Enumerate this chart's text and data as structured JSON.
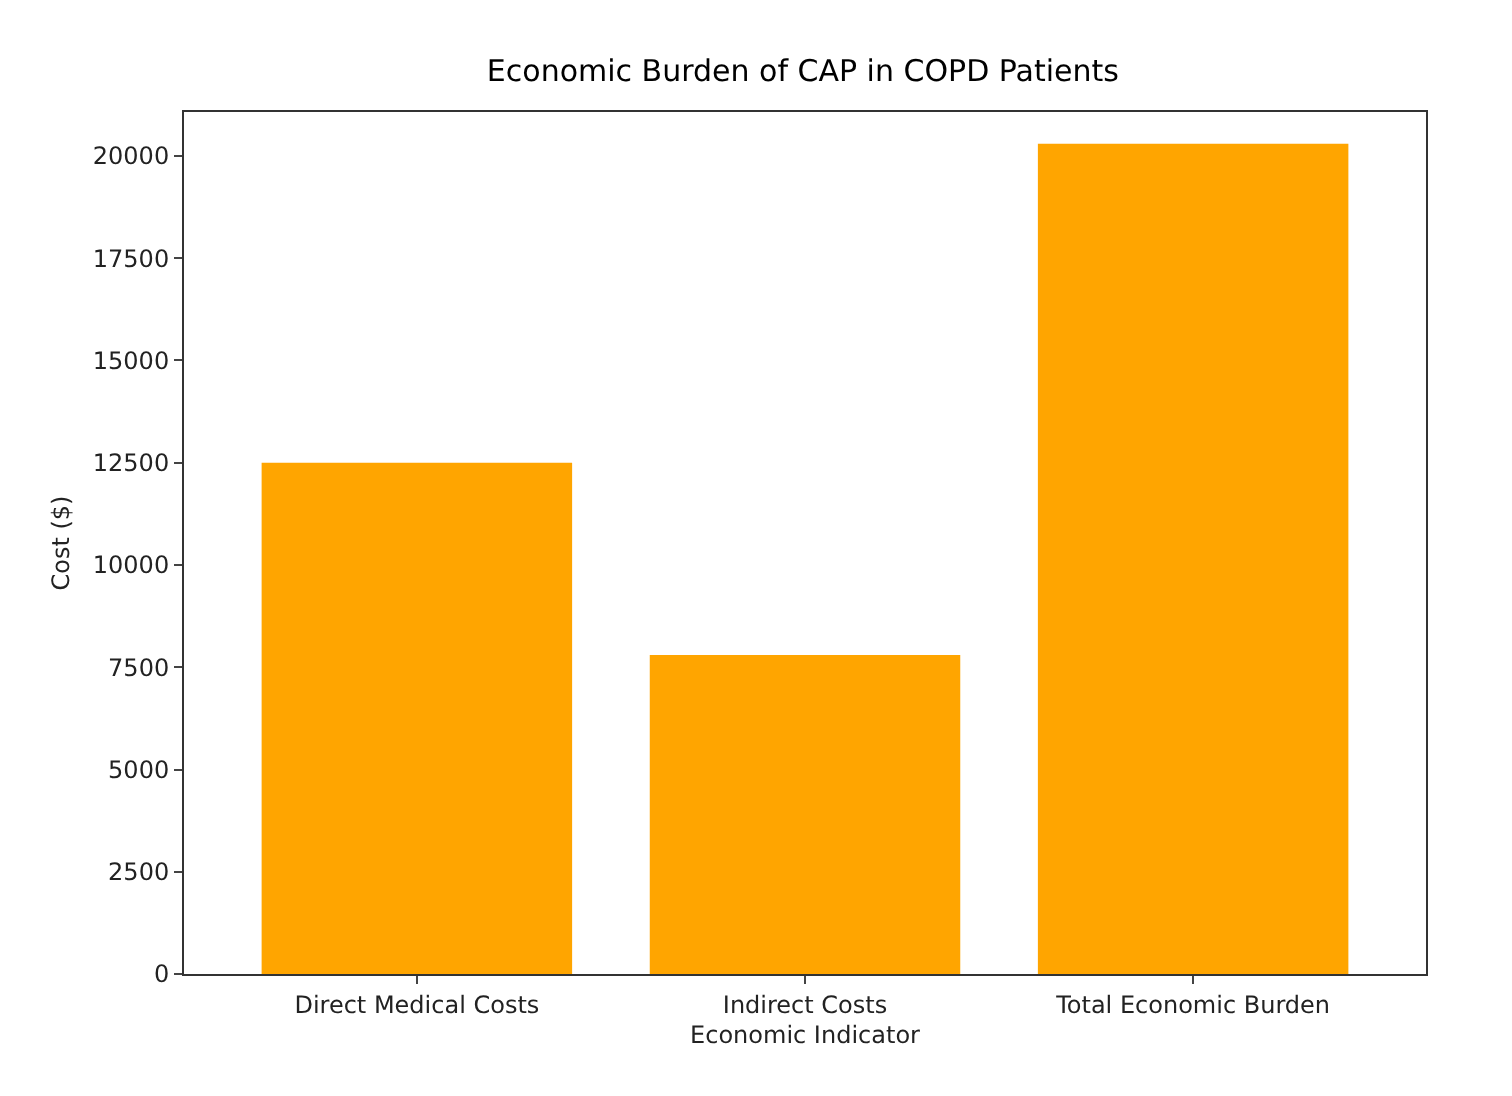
{
  "chart_data": {
    "type": "bar",
    "title": "Economic Burden of CAP in COPD Patients",
    "xlabel": "Economic Indicator",
    "ylabel": "Cost ($)",
    "categories": [
      "Direct Medical Costs",
      "Indirect Costs",
      "Total Economic Burden"
    ],
    "values": [
      12500,
      7800,
      20300
    ],
    "color": "#ffa500",
    "ylim": [
      0,
      21075
    ],
    "yticks": [
      0,
      2500,
      5000,
      7500,
      10000,
      12500,
      15000,
      17500,
      20000
    ],
    "grid": false,
    "legend": false
  }
}
